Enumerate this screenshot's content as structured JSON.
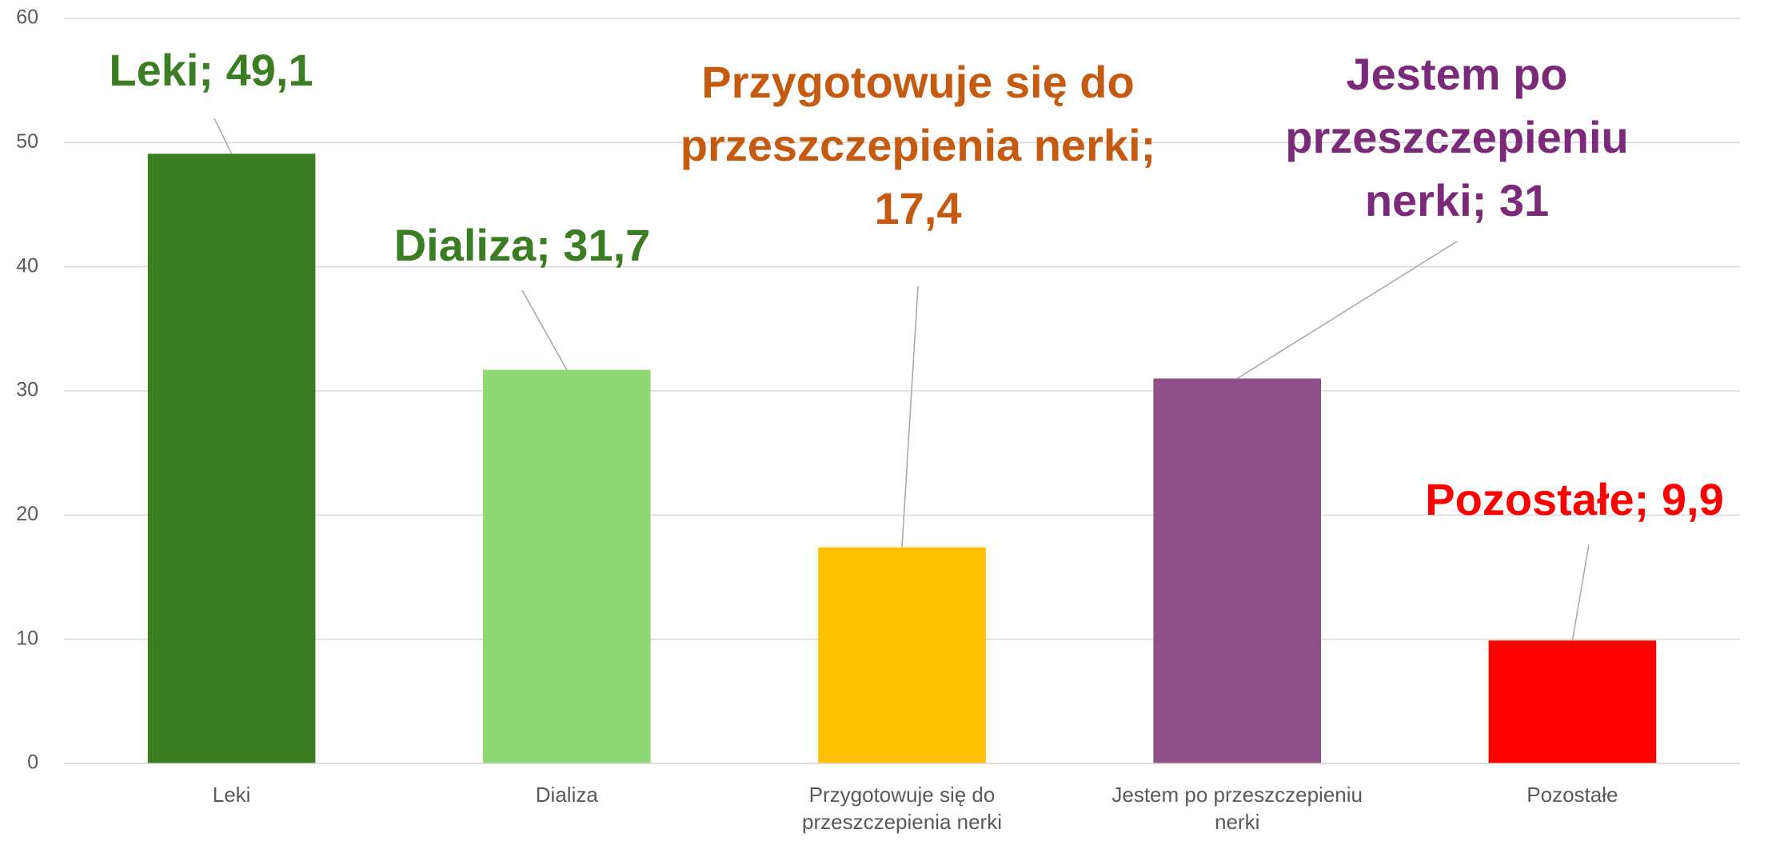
{
  "chart_data": {
    "type": "bar",
    "categories": [
      "Leki",
      "Dializa",
      "Przygotowuje się do przeszczepienia nerki",
      "Jestem po przeszczepieniu nerki",
      "Pozostałe"
    ],
    "values": [
      49.1,
      31.7,
      17.4,
      31,
      9.9
    ],
    "value_labels": [
      "Leki; 49,1",
      "Dializa; 31,7",
      "Przygotowuje się do przeszczepienia nerki; 17,4",
      "Jestem po przeszczepieniu nerki; 31",
      "Pozostałe; 9,9"
    ],
    "colors": [
      "#3b7d23",
      "#8ed973",
      "#ffc000",
      "#8e4f8a",
      "#ff0000"
    ],
    "label_colors": [
      "#3b7d23",
      "#3b7d23",
      "#c55a11",
      "#7a2a78",
      "#ff0000"
    ],
    "ylim": [
      0,
      60
    ],
    "yticks": [
      0,
      10,
      20,
      30,
      40,
      50,
      60
    ],
    "grid": true
  }
}
